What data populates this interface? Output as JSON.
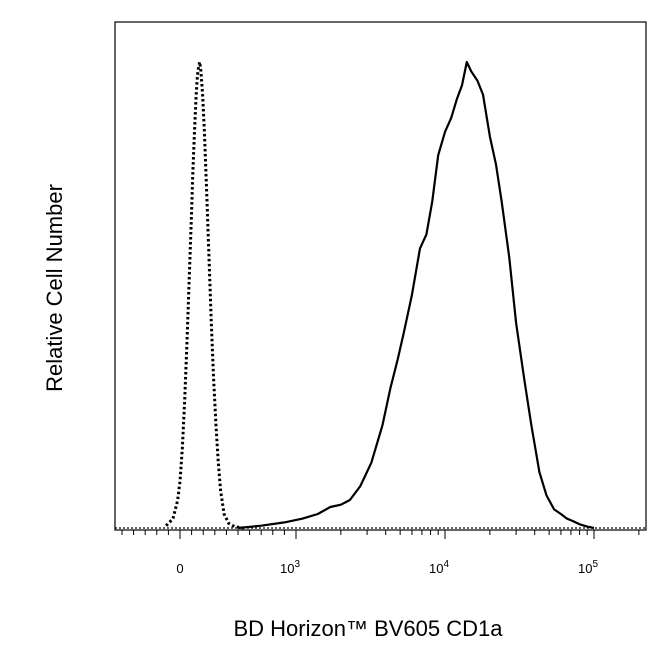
{
  "chart_data": {
    "type": "line",
    "chart_kind": "flow cytometry histogram",
    "title": "",
    "xlabel": "BD Horizon™ BV605 CD1a",
    "ylabel": "Relative Cell Number",
    "x_scale": "biexponential",
    "xlim": [
      -300,
      200000
    ],
    "ylim": [
      0,
      1.0
    ],
    "grid": false,
    "legend": "none",
    "x_ticks": [
      {
        "value": 0,
        "base": "0",
        "exp": ""
      },
      {
        "value": 1000,
        "base": "10",
        "exp": "3"
      },
      {
        "value": 10000,
        "base": "10",
        "exp": "4"
      },
      {
        "value": 100000,
        "base": "10",
        "exp": "5"
      }
    ],
    "series": [
      {
        "style": "dotted",
        "x": [
          -120,
          -60,
          -20,
          0,
          20,
          40,
          60,
          80,
          100,
          110,
          120,
          130,
          140,
          150,
          160,
          170,
          180,
          195,
          210,
          230,
          250,
          270,
          290,
          310,
          330,
          350,
          380,
          420,
          470,
          550
        ],
        "y": [
          0.005,
          0.02,
          0.06,
          0.1,
          0.17,
          0.27,
          0.4,
          0.54,
          0.68,
          0.76,
          0.82,
          0.88,
          0.93,
          0.97,
          0.99,
          1.0,
          0.98,
          0.93,
          0.85,
          0.72,
          0.58,
          0.44,
          0.32,
          0.22,
          0.14,
          0.08,
          0.03,
          0.01,
          0.003,
          0.0
        ]
      },
      {
        "style": "solid",
        "x": [
          500,
          700,
          900,
          1100,
          1400,
          1700,
          2000,
          2300,
          2700,
          3200,
          3800,
          4300,
          4800,
          5300,
          6000,
          6800,
          7500,
          8200,
          9000,
          10000,
          11000,
          12000,
          13000,
          14000,
          15000,
          16500,
          18000,
          20000,
          22000,
          24000,
          27000,
          30000,
          34000,
          38000,
          43000,
          48000,
          54000,
          60000,
          66000,
          72000,
          80000,
          90000,
          100000
        ],
        "y": [
          0.0,
          0.005,
          0.012,
          0.02,
          0.03,
          0.045,
          0.05,
          0.06,
          0.09,
          0.14,
          0.22,
          0.3,
          0.36,
          0.42,
          0.5,
          0.6,
          0.63,
          0.7,
          0.8,
          0.85,
          0.88,
          0.92,
          0.95,
          1.0,
          0.98,
          0.96,
          0.93,
          0.84,
          0.78,
          0.7,
          0.58,
          0.44,
          0.32,
          0.22,
          0.12,
          0.07,
          0.04,
          0.03,
          0.02,
          0.015,
          0.008,
          0.003,
          0.0
        ]
      }
    ]
  }
}
